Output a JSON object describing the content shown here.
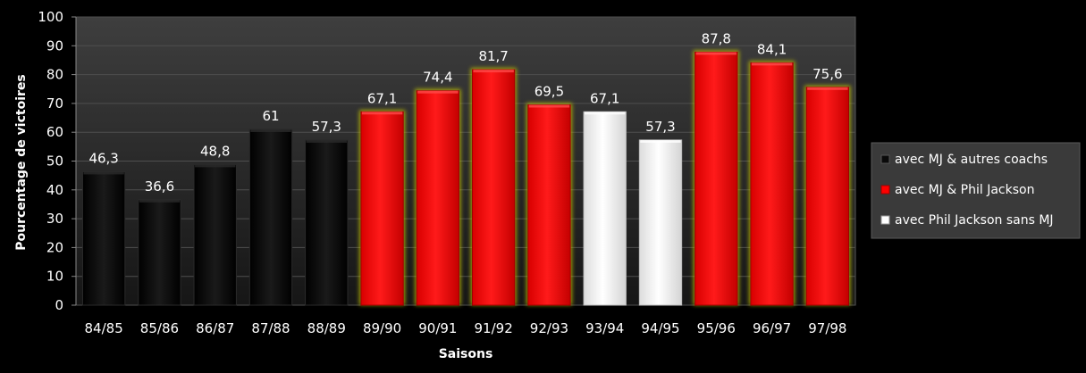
{
  "chart_data": {
    "type": "bar",
    "title": "",
    "xlabel": "Saisons",
    "ylabel": "Pourcentage de victoires",
    "ylim": [
      0,
      100
    ],
    "yticks": [
      "0",
      "10",
      "20",
      "30",
      "40",
      "50",
      "60",
      "70",
      "80",
      "90",
      "100"
    ],
    "grid": true,
    "legend_position": "right",
    "categories": [
      "84/85",
      "85/86",
      "86/87",
      "87/88",
      "88/89",
      "89/90",
      "90/91",
      "91/92",
      "92/93",
      "93/94",
      "94/95",
      "95/96",
      "96/97",
      "97/98"
    ],
    "values": [
      46.3,
      36.6,
      48.8,
      61,
      57.3,
      67.1,
      74.4,
      81.7,
      69.5,
      67.1,
      57.3,
      87.8,
      84.1,
      75.6
    ],
    "value_labels": [
      "46,3",
      "36,6",
      "48,8",
      "61",
      "57,3",
      "67,1",
      "74,4",
      "81,7",
      "69,5",
      "67,1",
      "57,3",
      "87,8",
      "84,1",
      "75,6"
    ],
    "groups": [
      0,
      0,
      0,
      0,
      0,
      1,
      1,
      1,
      1,
      2,
      2,
      1,
      1,
      1
    ],
    "legend": [
      {
        "label": "avec MJ & autres coachs",
        "color": "#0a0a0a"
      },
      {
        "label": "avec MJ & Phil Jackson",
        "color": "#ff0000"
      },
      {
        "label": "avec Phil Jackson sans MJ",
        "color": "#ffffff"
      }
    ]
  }
}
